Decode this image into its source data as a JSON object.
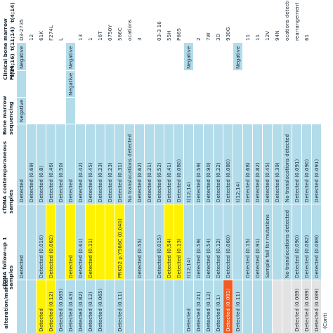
{
  "header": {
    "col_alteration": "alteration/marker",
    "clinical_fish": "Clinical bone marrow FISH",
    "fish_t414": "t(4;14)",
    "fish_t1114": "t(11;14)",
    "fish_t1416": "t(14;16)",
    "bm_seq": "Bone marrow sequencing",
    "cfdna_contemp": "cfDNA contemporaneous samples",
    "cfdna_follow": "cfDNA follow-up 1 samples"
  },
  "footer": {
    "continued": "(Conti"
  },
  "colors": {
    "blue": "#b3dcea",
    "yellow": "#fff200",
    "orange": "#f15a22",
    "grey": "#e3e3e3",
    "white": "#ffffff"
  },
  "rows": [
    {
      "label": "alteration/marker",
      "cells": {}
    },
    {
      "label": "D3-2735",
      "cells": {
        "t414": "Negative",
        "t1114": "",
        "t1416": "Negative",
        "bm": "Detected",
        "c1": "Detected",
        "c2": ""
      }
    },
    {
      "label": "12",
      "cells": {
        "bm": "Detected (0.69)",
        "c1": "",
        "c2": ""
      }
    },
    {
      "label": "61K",
      "cells": {
        "bm": "Detected (0.8)",
        "c1": "Detected (0.016)",
        "c2": "Detected"
      }
    },
    {
      "label": "F274L",
      "cells": {
        "bm": "Detected (0.46)",
        "c1": "Detected (0.062)",
        "c2": "Detected (0.12)"
      }
    },
    {
      "label": "L",
      "cells": {
        "bm": "Detected (0.50)",
        "c1": "",
        "c2": "Detected (0.065)"
      }
    },
    {
      "label": "",
      "cells": {
        "t414": "Negative",
        "t1114": "Negative",
        "t1416": "",
        "bm": "Detected",
        "c1": "Detected",
        "c2": "Detected (0.43)"
      }
    },
    {
      "label": "13",
      "cells": {
        "bm": "Detected (0.42)",
        "c1": "Detected (0.61)",
        "c2": "Detected (0.82)"
      }
    },
    {
      "label": "1",
      "cells": {
        "bm": "Detected (0.45)",
        "c1": "Detected (0.11)",
        "c2": "Detected (0.12)"
      }
    },
    {
      "label": "16T",
      "cells": {
        "bm": "Detected (0.23)",
        "c1": "",
        "c2": "Detected (0.065)"
      }
    },
    {
      "label": "0750Y",
      "cells": {
        "bm": "Detected (0.23)",
        "c1": "",
        "c2": ""
      }
    },
    {
      "label": "566C",
      "cells": {
        "bm": "Detected (0.31)",
        "c1": "PRKD2 p.Y566C (0.040)",
        "c2": "Detected (0.11)"
      }
    },
    {
      "label": "ocations",
      "cells": {
        "bm": "No translocations detected",
        "c1": "",
        "c2": ""
      }
    },
    {
      "label": "3",
      "cells": {
        "bm": "Detected (0.62)",
        "c1": "Detected (0.55)",
        "c2": ""
      }
    },
    {
      "label": "",
      "cells": {
        "bm": "Detected (0.21)",
        "c1": "",
        "c2": ""
      }
    },
    {
      "label": "03-3 16",
      "cells": {
        "bm": "Detected (0.52)",
        "c1": "Detected (0.015)",
        "c2": ""
      }
    },
    {
      "label": "55H",
      "cells": {
        "bm": "Detected (0.41)",
        "c1": "Detected (0.54)",
        "c2": ""
      }
    },
    {
      "label": "P665",
      "cells": {
        "bm": "Detected (0.080)",
        "c1": "Detected (0.13)",
        "c2": ""
      }
    },
    {
      "label": "",
      "cells": {
        "t414": "Negative",
        "bm": "t(12;14)",
        "c1": "t(12;14)",
        "c2": "Detected"
      }
    },
    {
      "label": "2",
      "cells": {
        "bm": "Detected (0.59)",
        "c1": "Detected (0.59)",
        "c2": "Detected (0.21)"
      }
    },
    {
      "label": "7W",
      "cells": {
        "bm": "Detected (0.90)",
        "c1": "Detected (0.54)",
        "c2": "Detected (0.12)"
      }
    },
    {
      "label": "3D",
      "cells": {
        "bm": "Detected (0.22)",
        "c1": "Detected (0.12)",
        "c2": "Detected (0.1)"
      }
    },
    {
      "label": "930G",
      "cells": {
        "bm": "Detected (0.080)",
        "c1": "Detected (0.060)",
        "c2": "Detected (0.091)"
      }
    },
    {
      "label": "",
      "cells": {
        "t414": "Negative",
        "bm": "t(12;14)",
        "c1": "",
        "c2": "Detected (0.11)"
      }
    },
    {
      "label": "11",
      "cells": {
        "bm": "Detected (0.68)",
        "c1": "Detected (0.15)",
        "c2": ""
      }
    },
    {
      "label": "11",
      "cells": {
        "bm": "Detected (0.82)",
        "c1": "Detected (0.91)",
        "c2": ""
      }
    },
    {
      "label": "12V",
      "cells": {
        "bm": "Detected (0.45)",
        "c1": "Sample fail for mutations",
        "c2": ""
      }
    },
    {
      "label": "94N",
      "cells": {
        "bm": "Detected (0.39)",
        "c1": "",
        "c2": ""
      }
    },
    {
      "label": "ocations detected",
      "cells": {
        "bm": "No translocations detected",
        "c1": "No translocations detected",
        "c2": ""
      }
    },
    {
      "label": "rearrangement found",
      "cells": {
        "bm": "Detected (0.091)",
        "c1": "Detected (0.090)",
        "c2": "Detected (0.089)"
      }
    },
    {
      "label": "61",
      "cells": {
        "bm": "Detected (0.090)",
        "c1": "Detected (0.082)",
        "c2": "Detected (0.089)"
      }
    },
    {
      "label": "",
      "cells": {
        "bm": "Detected (0.091)",
        "c1": "Detected (0.089)",
        "c2": "Detected (0.089)"
      }
    }
  ]
}
